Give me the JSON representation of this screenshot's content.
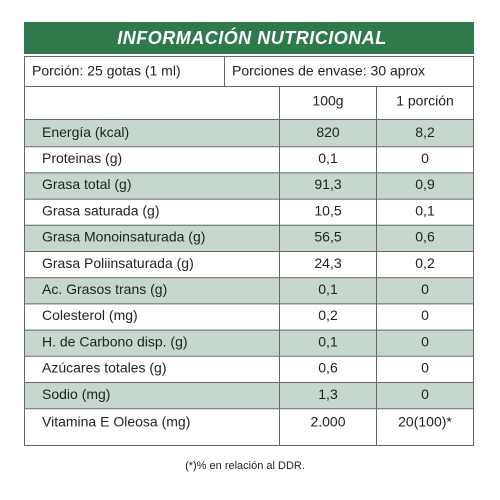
{
  "header": {
    "title": "INFORMACIÓN NUTRICIONAL"
  },
  "serving": {
    "portion": "Porción: 25 gotas (1 ml)",
    "servings_per_container": "Porciones de envase: 30 aprox"
  },
  "table": {
    "columns": [
      "100g",
      "1 porción"
    ],
    "rows": [
      [
        "Energía (kcal)",
        "820",
        "8,2"
      ],
      [
        "Proteinas (g)",
        "0,1",
        "0"
      ],
      [
        "Grasa total (g)",
        "91,3",
        "0,9"
      ],
      [
        "Grasa saturada (g)",
        "10,5",
        "0,1"
      ],
      [
        "Grasa Monoinsaturada (g)",
        "56,5",
        "0,6"
      ],
      [
        "Grasa Poliinsaturada (g)",
        "24,3",
        "0,2"
      ],
      [
        "Ac. Grasos trans (g)",
        "0,1",
        "0"
      ],
      [
        "Colesterol (mg)",
        "0,2",
        "0"
      ],
      [
        "H. de Carbono disp. (g)",
        "0,1",
        "0"
      ],
      [
        "Azúcares totales (g)",
        "0,6",
        "0"
      ],
      [
        "Sodio (mg)",
        "1,3",
        "0"
      ],
      [
        "Vitamina E Oleosa (mg)",
        "2.000",
        "20(100)*"
      ]
    ]
  },
  "footnote": "(*)% en relación al  DDR."
}
